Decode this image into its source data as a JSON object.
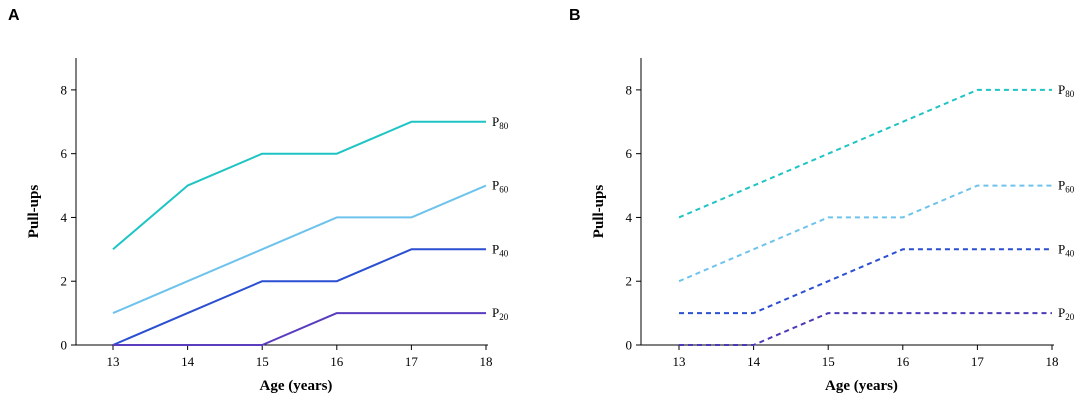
{
  "chart_data": [
    {
      "type": "line",
      "panel": "A",
      "xlabel": "Age (years)",
      "ylabel": "Pull-ups",
      "x": [
        13,
        14,
        15,
        16,
        17,
        18
      ],
      "x_ticks": [
        "13",
        "14",
        "15",
        "16",
        "17",
        "18"
      ],
      "ylim": [
        0,
        9
      ],
      "y_ticks": [
        "0",
        "2",
        "4",
        "6",
        "8"
      ],
      "line_style": "solid",
      "series": [
        {
          "name": "P80",
          "label_main": "P",
          "label_sub": "80",
          "color": "#1fc4c4",
          "values": [
            3,
            5,
            6,
            6,
            7,
            7
          ]
        },
        {
          "name": "P60",
          "label_main": "P",
          "label_sub": "60",
          "color": "#6ec3ec",
          "values": [
            1,
            2,
            3,
            4,
            4,
            5
          ]
        },
        {
          "name": "P40",
          "label_main": "P",
          "label_sub": "40",
          "color": "#2b4fd1",
          "values": [
            0,
            1,
            2,
            2,
            3,
            3
          ]
        },
        {
          "name": "P20",
          "label_main": "P",
          "label_sub": "20",
          "color": "#5a3cbf",
          "values": [
            0,
            0,
            0,
            1,
            1,
            1
          ]
        }
      ]
    },
    {
      "type": "line",
      "panel": "B",
      "xlabel": "Age (years)",
      "ylabel": "Pull-ups",
      "x": [
        13,
        14,
        15,
        16,
        17,
        18
      ],
      "x_ticks": [
        "13",
        "14",
        "15",
        "16",
        "17",
        "18"
      ],
      "ylim": [
        0,
        9
      ],
      "y_ticks": [
        "0",
        "2",
        "4",
        "6",
        "8"
      ],
      "line_style": "dashed",
      "series": [
        {
          "name": "P80",
          "label_main": "P",
          "label_sub": "80",
          "color": "#1fc4c4",
          "values": [
            4,
            5,
            6,
            7,
            8,
            8
          ]
        },
        {
          "name": "P60",
          "label_main": "P",
          "label_sub": "60",
          "color": "#6ec3ec",
          "values": [
            2,
            3,
            4,
            4,
            5,
            5
          ]
        },
        {
          "name": "P40",
          "label_main": "P",
          "label_sub": "40",
          "color": "#2b4fd1",
          "values": [
            1,
            1,
            2,
            3,
            3,
            3
          ]
        },
        {
          "name": "P20",
          "label_main": "P",
          "label_sub": "20",
          "color": "#4a3ab8",
          "values": [
            0,
            0,
            1,
            1,
            1,
            1
          ]
        }
      ]
    }
  ]
}
